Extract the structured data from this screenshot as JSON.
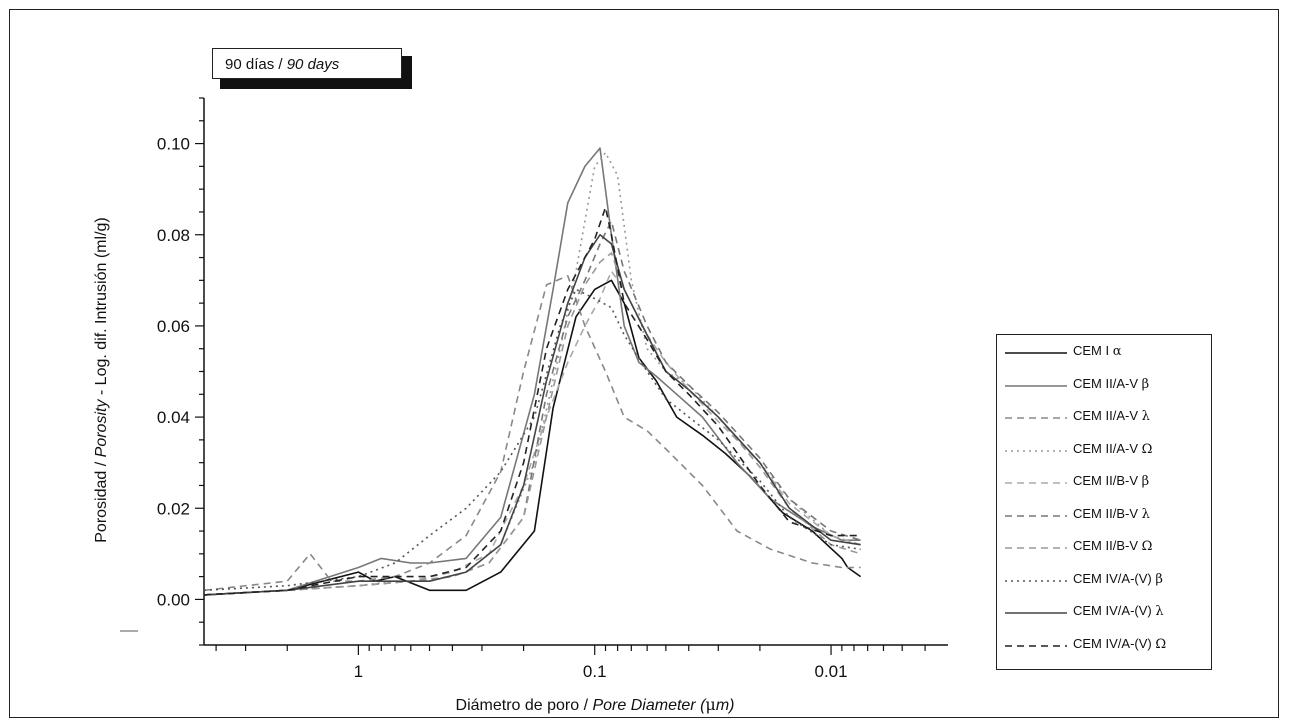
{
  "chart_data": {
    "type": "line",
    "title": "90 días / 90 days",
    "title_plain": "90 días / ",
    "title_italic": "90 days",
    "xlabel_plain": "Diámetro de poro / ",
    "xlabel_italic": "Pore Diameter (",
    "xlabel_mu": "μ",
    "xlabel_end": "m)",
    "ylabel_plain1": "Porosidad / ",
    "ylabel_italic": "Porosity",
    "ylabel_plain2": " - Log. dif. Intrusión (ml/g)",
    "x_scale": "log, reversed",
    "x_ticks": [
      "1",
      "0.1",
      "0.01"
    ],
    "x_tick_values": [
      1,
      0.1,
      0.01
    ],
    "xlim": [
      4.5,
      0.0032
    ],
    "y_ticks": [
      "0.00",
      "0.02",
      "0.04",
      "0.06",
      "0.08",
      "0.10"
    ],
    "y_tick_values": [
      0,
      0.02,
      0.04,
      0.06,
      0.08,
      0.1
    ],
    "ylim": [
      -0.01,
      0.11
    ],
    "legend_position": "right",
    "grid": false,
    "series": [
      {
        "name": "CEM I",
        "greek": "α",
        "color": "#111111",
        "dash": "none",
        "x": [
          4.5,
          2,
          1,
          0.85,
          0.7,
          0.5,
          0.35,
          0.25,
          0.18,
          0.15,
          0.12,
          0.1,
          0.085,
          0.075,
          0.065,
          0.055,
          0.045,
          0.035,
          0.028,
          0.022,
          0.016,
          0.012,
          0.009,
          0.0085,
          0.0075
        ],
        "y": [
          0.001,
          0.002,
          0.006,
          0.004,
          0.005,
          0.002,
          0.002,
          0.006,
          0.015,
          0.042,
          0.062,
          0.068,
          0.07,
          0.065,
          0.053,
          0.048,
          0.04,
          0.036,
          0.032,
          0.027,
          0.019,
          0.015,
          0.009,
          0.007,
          0.005
        ]
      },
      {
        "name": "CEM II/A-V",
        "greek": "β",
        "color": "#777777",
        "dash": "none",
        "x": [
          4.5,
          2,
          1,
          0.8,
          0.6,
          0.5,
          0.35,
          0.25,
          0.18,
          0.15,
          0.13,
          0.11,
          0.095,
          0.085,
          0.075,
          0.065,
          0.055,
          0.045,
          0.035,
          0.025,
          0.018,
          0.012,
          0.009,
          0.0075
        ],
        "y": [
          0.001,
          0.002,
          0.007,
          0.009,
          0.008,
          0.008,
          0.009,
          0.018,
          0.045,
          0.068,
          0.087,
          0.095,
          0.099,
          0.08,
          0.06,
          0.052,
          0.049,
          0.045,
          0.04,
          0.03,
          0.022,
          0.016,
          0.013,
          0.013
        ]
      },
      {
        "name": "CEM II/A-V",
        "greek": "λ",
        "color": "#888888",
        "dash": "7,5",
        "x": [
          4.5,
          2,
          1.6,
          1.3,
          1,
          0.7,
          0.5,
          0.35,
          0.25,
          0.2,
          0.16,
          0.13,
          0.11,
          0.09,
          0.075,
          0.06,
          0.05,
          0.035,
          0.025,
          0.018,
          0.012,
          0.009,
          0.0075
        ],
        "y": [
          0.002,
          0.004,
          0.01,
          0.004,
          0.004,
          0.005,
          0.008,
          0.014,
          0.028,
          0.05,
          0.069,
          0.071,
          0.06,
          0.05,
          0.04,
          0.037,
          0.033,
          0.025,
          0.015,
          0.011,
          0.008,
          0.007,
          0.007
        ]
      },
      {
        "name": "CEM II/A-V",
        "greek": "Ω",
        "color": "#999999",
        "dash": "2,4",
        "x": [
          4.5,
          2,
          1,
          0.7,
          0.5,
          0.35,
          0.25,
          0.18,
          0.14,
          0.12,
          0.1,
          0.09,
          0.08,
          0.07,
          0.06,
          0.05,
          0.04,
          0.03,
          0.02,
          0.015,
          0.01,
          0.0075
        ],
        "y": [
          0.001,
          0.002,
          0.003,
          0.004,
          0.004,
          0.006,
          0.012,
          0.03,
          0.055,
          0.072,
          0.095,
          0.098,
          0.093,
          0.07,
          0.055,
          0.05,
          0.047,
          0.04,
          0.03,
          0.022,
          0.014,
          0.012
        ]
      },
      {
        "name": "CEM II/B-V",
        "greek": "β",
        "color": "#aaaaaa",
        "dash": "7,5",
        "x": [
          4.5,
          2,
          1,
          0.6,
          0.4,
          0.28,
          0.2,
          0.16,
          0.13,
          0.11,
          0.095,
          0.085,
          0.075,
          0.06,
          0.05,
          0.04,
          0.03,
          0.02,
          0.015,
          0.01,
          0.0075
        ],
        "y": [
          0.001,
          0.002,
          0.003,
          0.004,
          0.006,
          0.01,
          0.025,
          0.04,
          0.052,
          0.06,
          0.066,
          0.072,
          0.068,
          0.058,
          0.052,
          0.046,
          0.039,
          0.03,
          0.021,
          0.014,
          0.012
        ]
      },
      {
        "name": "CEM II/B-V",
        "greek": "λ",
        "color": "#777777",
        "dash": "7,5",
        "x": [
          4.5,
          2,
          1,
          0.6,
          0.4,
          0.28,
          0.2,
          0.16,
          0.13,
          0.11,
          0.095,
          0.085,
          0.075,
          0.06,
          0.05,
          0.04,
          0.03,
          0.02,
          0.015,
          0.01,
          0.0075
        ],
        "y": [
          0.001,
          0.002,
          0.003,
          0.004,
          0.005,
          0.008,
          0.018,
          0.045,
          0.062,
          0.07,
          0.078,
          0.083,
          0.072,
          0.06,
          0.052,
          0.047,
          0.041,
          0.031,
          0.022,
          0.015,
          0.013
        ]
      },
      {
        "name": "CEM II/B-V",
        "greek": "Ω",
        "color": "#999999",
        "dash": "7,5",
        "x": [
          4.5,
          2,
          1,
          0.6,
          0.4,
          0.28,
          0.2,
          0.16,
          0.13,
          0.11,
          0.095,
          0.085,
          0.075,
          0.06,
          0.05,
          0.04,
          0.03,
          0.02,
          0.015,
          0.01,
          0.0075
        ],
        "y": [
          0.001,
          0.002,
          0.003,
          0.004,
          0.005,
          0.008,
          0.018,
          0.04,
          0.06,
          0.069,
          0.074,
          0.076,
          0.068,
          0.058,
          0.05,
          0.046,
          0.04,
          0.029,
          0.02,
          0.012,
          0.01
        ]
      },
      {
        "name": "CEM IV/A-(V)",
        "greek": "β",
        "color": "#555555",
        "dash": "2,4",
        "x": [
          4.5,
          2,
          1,
          0.7,
          0.5,
          0.35,
          0.25,
          0.18,
          0.14,
          0.12,
          0.1,
          0.085,
          0.075,
          0.06,
          0.05,
          0.04,
          0.03,
          0.02,
          0.015,
          0.01,
          0.0075
        ],
        "y": [
          0.002,
          0.003,
          0.005,
          0.008,
          0.014,
          0.02,
          0.028,
          0.04,
          0.06,
          0.068,
          0.066,
          0.064,
          0.058,
          0.05,
          0.044,
          0.04,
          0.035,
          0.026,
          0.018,
          0.012,
          0.011
        ]
      },
      {
        "name": "CEM IV/A-(V)",
        "greek": "λ",
        "color": "#444444",
        "dash": "none",
        "x": [
          4.5,
          2,
          1,
          0.7,
          0.5,
          0.35,
          0.25,
          0.2,
          0.16,
          0.13,
          0.11,
          0.095,
          0.085,
          0.075,
          0.06,
          0.05,
          0.04,
          0.03,
          0.02,
          0.015,
          0.01,
          0.0075
        ],
        "y": [
          0.001,
          0.002,
          0.004,
          0.004,
          0.004,
          0.006,
          0.012,
          0.025,
          0.048,
          0.065,
          0.075,
          0.08,
          0.078,
          0.068,
          0.058,
          0.05,
          0.046,
          0.04,
          0.03,
          0.02,
          0.013,
          0.012
        ]
      },
      {
        "name": "CEM IV/A-(V)",
        "greek": "Ω",
        "color": "#222222",
        "dash": "7,5",
        "x": [
          4.5,
          2,
          1,
          0.7,
          0.5,
          0.35,
          0.25,
          0.2,
          0.16,
          0.13,
          0.11,
          0.1,
          0.09,
          0.085,
          0.075,
          0.06,
          0.05,
          0.04,
          0.03,
          0.02,
          0.015,
          0.01,
          0.0075
        ],
        "y": [
          0.001,
          0.002,
          0.005,
          0.005,
          0.005,
          0.007,
          0.015,
          0.03,
          0.055,
          0.068,
          0.075,
          0.079,
          0.086,
          0.08,
          0.065,
          0.057,
          0.05,
          0.045,
          0.038,
          0.025,
          0.017,
          0.014,
          0.014
        ]
      }
    ]
  }
}
